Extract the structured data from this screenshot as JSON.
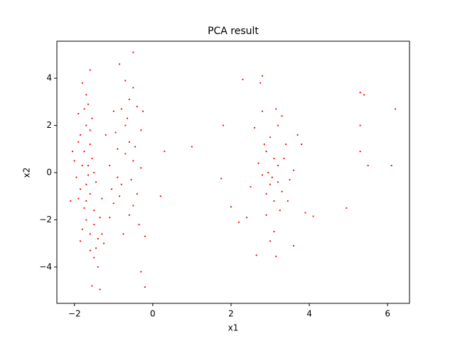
{
  "chart_data": {
    "type": "scatter",
    "title": "PCA result",
    "x_label": "x1",
    "y_label": "x2",
    "color": "#ff0000",
    "xlim": [
      -2.45,
      6.56
    ],
    "ylim": [
      -5.54,
      5.57
    ],
    "xticks": [
      {
        "value": -2,
        "label": "−2"
      },
      0,
      2,
      4,
      6
    ],
    "yticks": [
      {
        "value": -4,
        "label": "−4"
      },
      {
        "value": -2,
        "label": "−2"
      },
      0,
      2,
      4
    ],
    "x": [
      -1.7,
      -1.8,
      -1.6,
      -1.9,
      -1.5,
      -1.4,
      -1.7,
      -1.65,
      -1.85,
      -2.0,
      -1.95,
      -1.75,
      -1.6,
      -1.55,
      -1.8,
      -1.45,
      -1.3,
      -1.6,
      -1.7,
      -1.55,
      -1.9,
      -1.75,
      -1.65,
      -2.05,
      -1.85,
      -1.5,
      -1.35,
      -1.6,
      -1.7,
      -1.8,
      -1.6,
      -1.55,
      -1.35,
      -1.4,
      -1.25,
      -1.5,
      -1.9,
      -1.65,
      -1.7,
      -1.45,
      -2.1,
      -1.85,
      -1.75,
      -1.5,
      -1.6,
      -1.3,
      -0.9,
      -0.7,
      -0.5,
      -0.8,
      -1.0,
      -0.6,
      -0.4,
      -0.5,
      -0.85,
      -0.5,
      -0.7,
      -1.0,
      -1.1,
      -0.9,
      -0.6,
      -0.4,
      -0.3,
      -0.35,
      -0.2,
      -0.3,
      -0.2,
      -0.75,
      -0.95,
      -0.55,
      -0.7,
      -0.45,
      -0.8,
      -1.05,
      -0.6,
      -0.3,
      -0.85,
      -0.5,
      -0.65,
      -0.25,
      -1.2,
      -1.1,
      0.2,
      0.3,
      1.0,
      1.8,
      1.75,
      2.0,
      2.2,
      3.0,
      3.2,
      2.9,
      3.1,
      2.8,
      3.3,
      3.0,
      3.2,
      2.9,
      3.1,
      2.8,
      3.15,
      2.8,
      2.75,
      2.3,
      3.4,
      3.5,
      2.7,
      3.05,
      3.25,
      2.95,
      3.35,
      3.0,
      3.6,
      2.65,
      3.15,
      2.6,
      3.7,
      3.1,
      2.9,
      3.2,
      3.45,
      2.5,
      2.4,
      3.6,
      2.85,
      3.3,
      3.9,
      4.1,
      3.8,
      4.95,
      5.3,
      5.4,
      6.2,
      5.3,
      5.3,
      5.5,
      6.1
    ],
    "values": [
      -0.5,
      0.3,
      1.2,
      -1.1,
      -2.2,
      -2.8,
      2.0,
      2.9,
      1.6,
      0.5,
      -0.2,
      -1.5,
      -0.9,
      0.6,
      -2.4,
      -3.2,
      -2.6,
      -3.3,
      3.3,
      2.3,
      2.5,
      0.9,
      -0.1,
      0.9,
      -0.7,
      -1.6,
      -1.9,
      1.8,
      -2.0,
      3.8,
      4.35,
      -4.8,
      -4.95,
      -4.0,
      -3.0,
      -3.6,
      1.3,
      0.3,
      -1.2,
      -0.4,
      -1.2,
      -2.9,
      2.7,
      0.0,
      -2.6,
      -1.1,
      1.0,
      2.0,
      0.5,
      -0.5,
      -1.3,
      -1.8,
      2.8,
      3.6,
      4.6,
      5.1,
      3.9,
      2.6,
      0.3,
      -0.2,
      1.3,
      -0.9,
      1.8,
      -2.2,
      -2.7,
      -4.2,
      -4.85,
      -2.6,
      1.7,
      -0.3,
      0.8,
      1.1,
      2.7,
      -0.7,
      3.1,
      0.2,
      -1.0,
      -1.4,
      2.3,
      2.6,
      1.6,
      -1.9,
      -1.0,
      0.9,
      1.1,
      2.0,
      -0.25,
      -1.45,
      -2.1,
      -0.5,
      0.3,
      0.9,
      -1.2,
      -0.1,
      -0.8,
      1.5,
      2.0,
      -1.8,
      -2.5,
      2.6,
      2.7,
      4.1,
      3.8,
      3.95,
      1.2,
      -0.3,
      0.4,
      -0.2,
      -1.6,
      0.0,
      0.6,
      -2.9,
      -3.1,
      -3.5,
      -3.55,
      1.9,
      1.6,
      0.6,
      -0.9,
      -0.4,
      -1.2,
      -0.6,
      -1.9,
      0.1,
      1.2,
      2.4,
      -1.7,
      -1.85,
      1.2,
      -1.5,
      3.4,
      3.3,
      2.7,
      2.0,
      0.9,
      0.3,
      0.3
    ]
  }
}
